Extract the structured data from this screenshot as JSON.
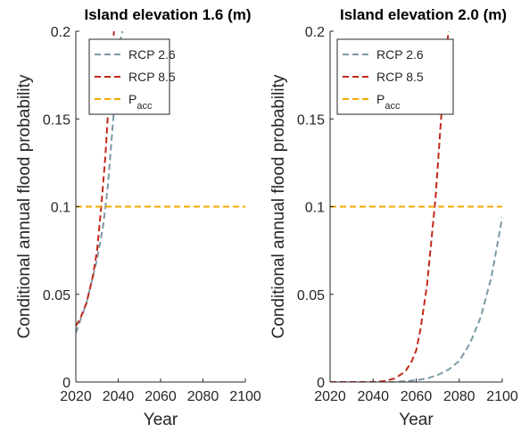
{
  "figure": {
    "ylabel": "Conditional annual flood probability"
  },
  "chart_data": [
    {
      "type": "line",
      "title": "Island elevation 1.6 (m)",
      "xlabel": "Year",
      "ylabel": "Conditional annual flood probability",
      "xlim": [
        2020,
        2100
      ],
      "ylim": [
        0,
        0.2
      ],
      "xticks": [
        "2020",
        "2040",
        "2060",
        "2080",
        "2100"
      ],
      "yticks": [
        "0",
        "0.05",
        "0.1",
        "0.15",
        "0.2"
      ],
      "grid": false,
      "legend_position": "top-right",
      "series": [
        {
          "name": "RCP 2.6",
          "color": "#7a9aa6",
          "dash": true,
          "x": [
            2020,
            2025,
            2030,
            2033,
            2035,
            2037,
            2039,
            2041,
            2042
          ],
          "y": [
            0.028,
            0.045,
            0.07,
            0.09,
            0.11,
            0.14,
            0.17,
            0.195,
            0.2
          ]
        },
        {
          "name": "RCP 8.5",
          "color": "#c0281a",
          "dash": true,
          "x": [
            2020,
            2022,
            2025,
            2028,
            2030,
            2032,
            2034,
            2036,
            2038
          ],
          "y": [
            0.032,
            0.036,
            0.045,
            0.06,
            0.075,
            0.1,
            0.13,
            0.17,
            0.2
          ]
        },
        {
          "name": "P",
          "sub": "acc",
          "color": "#f5a800",
          "dash": true,
          "x": [
            2020,
            2100
          ],
          "y": [
            0.1,
            0.1
          ]
        }
      ]
    },
    {
      "type": "line",
      "title": "Island elevation 2.0 (m)",
      "xlabel": "Year",
      "ylabel": "Conditional annual flood probability",
      "xlim": [
        2020,
        2100
      ],
      "ylim": [
        0,
        0.2
      ],
      "xticks": [
        "2020",
        "2040",
        "2060",
        "2080",
        "2100"
      ],
      "yticks": [
        "0",
        "0.05",
        "0.1",
        "0.15",
        "0.2"
      ],
      "grid": false,
      "legend_position": "top-left",
      "series": [
        {
          "name": "RCP 2.6",
          "color": "#7a9aa6",
          "dash": true,
          "x": [
            2020,
            2040,
            2050,
            2055,
            2060,
            2065,
            2070,
            2075,
            2080,
            2085,
            2090,
            2095,
            2100
          ],
          "y": [
            0,
            0,
            0,
            0.0005,
            0.001,
            0.002,
            0.004,
            0.007,
            0.012,
            0.022,
            0.037,
            0.06,
            0.094
          ]
        },
        {
          "name": "RCP 8.5",
          "color": "#c0281a",
          "dash": true,
          "x": [
            2020,
            2040,
            2045,
            2050,
            2055,
            2058,
            2060,
            2062,
            2065,
            2067,
            2069,
            2071,
            2073,
            2075
          ],
          "y": [
            0,
            0,
            0.0005,
            0.002,
            0.006,
            0.012,
            0.018,
            0.03,
            0.055,
            0.08,
            0.105,
            0.14,
            0.175,
            0.2
          ]
        },
        {
          "name": "P",
          "sub": "acc",
          "color": "#f5a800",
          "dash": true,
          "x": [
            2020,
            2100
          ],
          "y": [
            0.1,
            0.1
          ]
        }
      ]
    }
  ]
}
